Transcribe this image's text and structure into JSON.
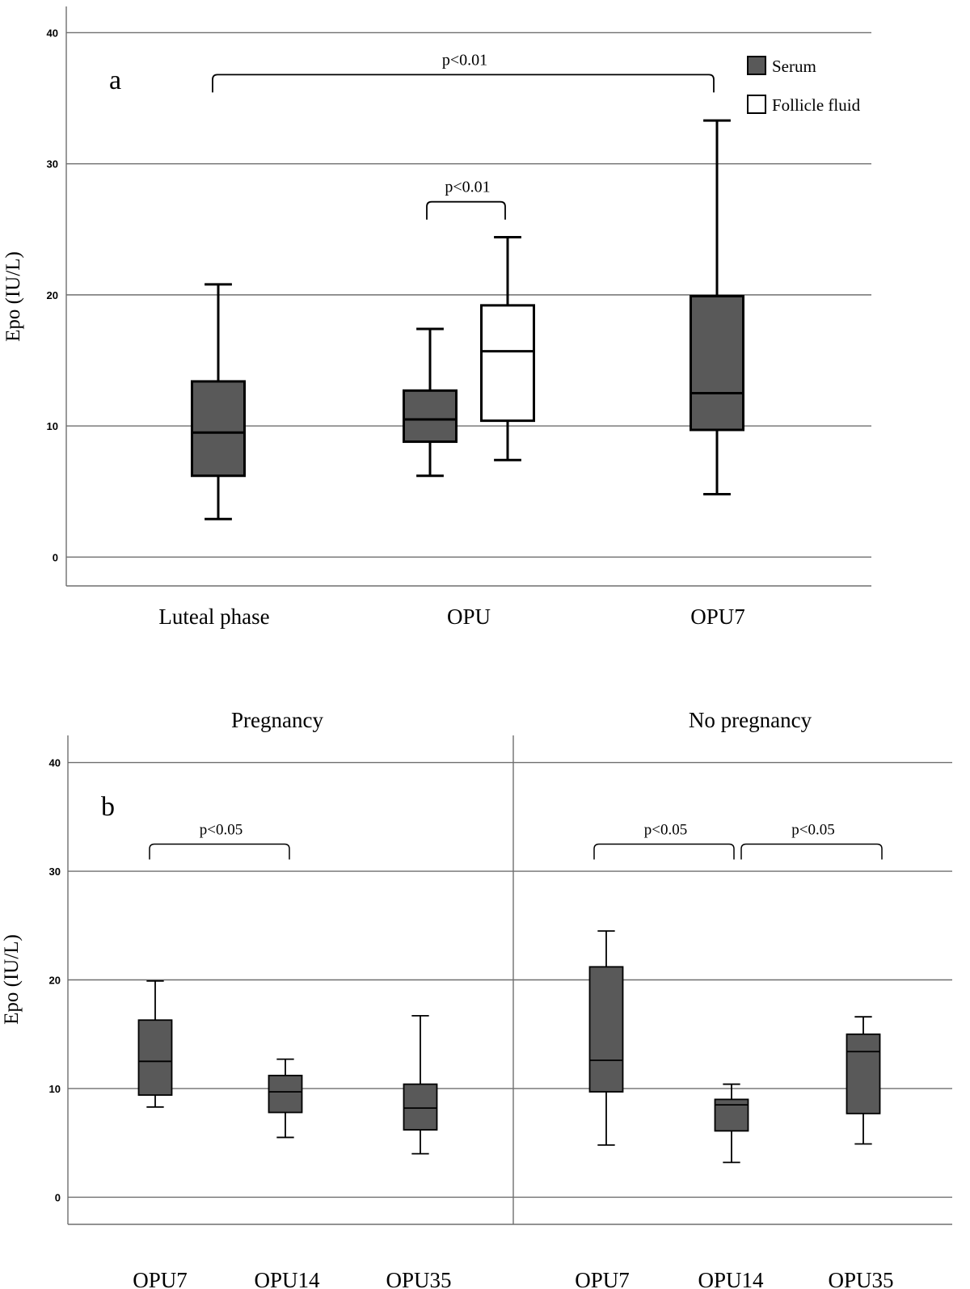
{
  "colors": {
    "serum_fill": "#595959",
    "follicle_fill": "#ffffff",
    "stroke": "#000000",
    "grid": "#6f6f6f"
  },
  "chart_data": [
    {
      "type": "boxplot",
      "panel_label": "a",
      "title": "",
      "ylabel": "Epo (IU/L)",
      "xlabel": "",
      "ylim": [
        -2.2,
        42
      ],
      "yticks": [
        0,
        10,
        20,
        30,
        40
      ],
      "grid": true,
      "legend": [
        {
          "name": "Serum",
          "color": "#595959"
        },
        {
          "name": "Follicle fluid",
          "color": "#ffffff"
        }
      ],
      "legend_position": "top-right",
      "categories": [
        "Luteal phase",
        "OPU",
        "OPU7"
      ],
      "boxes": [
        {
          "category": "Luteal phase",
          "series": "Serum",
          "min": 2.9,
          "q1": 6.2,
          "median": 9.5,
          "q3": 13.4,
          "max": 20.8
        },
        {
          "category": "OPU",
          "series": "Serum",
          "min": 6.2,
          "q1": 8.8,
          "median": 10.5,
          "q3": 12.7,
          "max": 17.4
        },
        {
          "category": "OPU",
          "series": "Follicle fluid",
          "min": 7.4,
          "q1": 10.4,
          "median": 15.7,
          "q3": 19.2,
          "max": 24.4
        },
        {
          "category": "OPU7",
          "series": "Serum",
          "min": 4.8,
          "q1": 9.7,
          "median": 12.5,
          "q3": 19.9,
          "max": 33.3
        }
      ],
      "annotations": [
        {
          "label": "p<0.01",
          "from": "Luteal phase",
          "to": "OPU7",
          "y": 36.8
        },
        {
          "label": "p<0.01",
          "from": "OPU (Serum)",
          "to": "OPU (Follicle fluid)",
          "y": 27.1
        }
      ]
    },
    {
      "type": "boxplot",
      "panel_label": "b",
      "ylabel": "Epo (IU/L)",
      "xlabel": "",
      "ylim": [
        -2.5,
        42.5
      ],
      "yticks": [
        0,
        10,
        20,
        30,
        40
      ],
      "grid": true,
      "facets": [
        {
          "title": "Pregnancy",
          "categories": [
            "OPU7",
            "OPU14",
            "OPU35"
          ],
          "boxes": [
            {
              "category": "OPU7",
              "series": "Serum",
              "min": 8.3,
              "q1": 9.4,
              "median": 12.5,
              "q3": 16.3,
              "max": 19.9
            },
            {
              "category": "OPU14",
              "series": "Serum",
              "min": 5.5,
              "q1": 7.8,
              "median": 9.7,
              "q3": 11.2,
              "max": 12.7
            },
            {
              "category": "OPU35",
              "series": "Serum",
              "min": 4.0,
              "q1": 6.2,
              "median": 8.2,
              "q3": 10.4,
              "max": 16.7
            }
          ],
          "annotations": [
            {
              "label": "p<0.05",
              "from": "OPU7",
              "to": "OPU14",
              "y": 32.5
            }
          ]
        },
        {
          "title": "No pregnancy",
          "categories": [
            "OPU7",
            "OPU14",
            "OPU35"
          ],
          "boxes": [
            {
              "category": "OPU7",
              "series": "Serum",
              "min": 4.8,
              "q1": 9.7,
              "median": 12.6,
              "q3": 21.2,
              "max": 24.5
            },
            {
              "category": "OPU14",
              "series": "Serum",
              "min": 3.2,
              "q1": 6.1,
              "median": 8.5,
              "q3": 9.0,
              "max": 10.4
            },
            {
              "category": "OPU35",
              "series": "Serum",
              "min": 4.9,
              "q1": 7.7,
              "median": 13.4,
              "q3": 15.0,
              "max": 16.6
            }
          ],
          "annotations": [
            {
              "label": "p<0.05",
              "from": "OPU7",
              "to": "OPU14",
              "y": 32.5
            },
            {
              "label": "p<0.05",
              "from": "OPU14",
              "to": "OPU35",
              "y": 32.5
            }
          ]
        }
      ]
    }
  ]
}
